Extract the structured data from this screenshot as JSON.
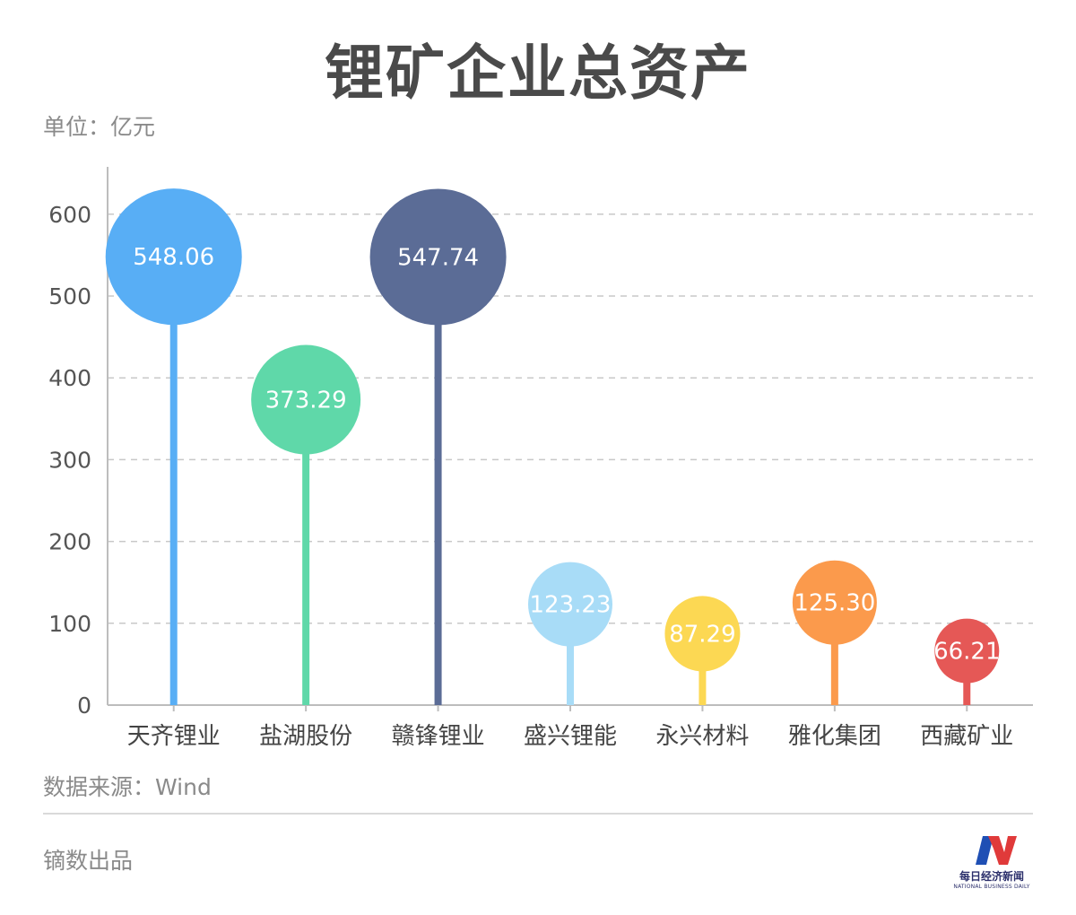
{
  "header": {
    "title": "锂矿企业总资产",
    "unit_label": "单位：亿元"
  },
  "chart_data": {
    "type": "lollipop",
    "title": "锂矿企业总资产",
    "unit": "单位：亿元",
    "categories": [
      "天齐锂业",
      "盐湖股份",
      "赣锋锂业",
      "盛兴锂能",
      "永兴材料",
      "雅化集团",
      "西藏矿业"
    ],
    "values": [
      548.06,
      373.29,
      547.74,
      123.23,
      87.29,
      125.3,
      66.21
    ],
    "value_labels": [
      "548.06",
      "373.29",
      "547.74",
      "123.23",
      "87.29",
      "125.30",
      "66.21"
    ],
    "colors": [
      "#58aef5",
      "#5fd8a9",
      "#5b6c96",
      "#a8dcf7",
      "#fcd853",
      "#fb9a4c",
      "#e55856"
    ],
    "ylim": [
      0,
      650
    ],
    "yticks": [
      0,
      100,
      200,
      300,
      400,
      500,
      600
    ],
    "grid": true
  },
  "footer": {
    "source": "数据来源：Wind",
    "producer": "镝数出品"
  },
  "logo": {
    "text_cn": "每日经济新闻",
    "text_en": "NATIONAL BUSINESS DAILY"
  }
}
